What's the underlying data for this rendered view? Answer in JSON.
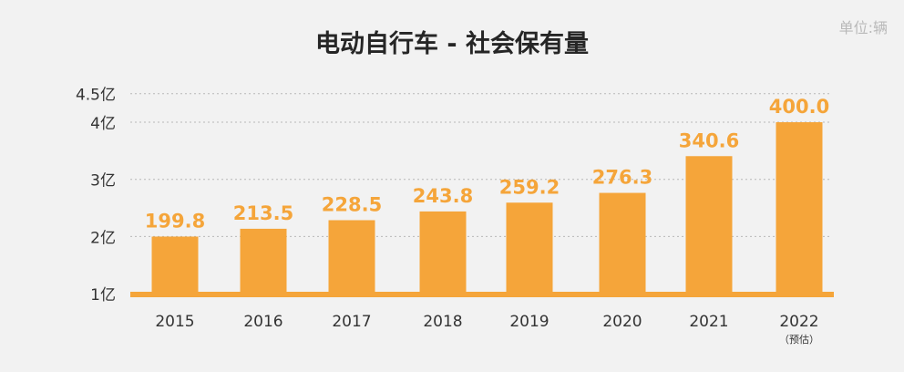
{
  "chart_data": {
    "type": "bar",
    "title": "电动自行车 - 社会保有量",
    "unit_label": "单位:辆",
    "categories": [
      "2015",
      "2016",
      "2017",
      "2018",
      "2019",
      "2020",
      "2021",
      "2022"
    ],
    "category_notes": [
      "",
      "",
      "",
      "",
      "",
      "",
      "",
      "（预估）"
    ],
    "values": [
      199.8,
      213.5,
      228.5,
      243.8,
      259.2,
      276.3,
      340.6,
      400.0
    ],
    "value_labels": [
      "199.8",
      "213.5",
      "228.5",
      "243.8",
      "259.2",
      "276.3",
      "340.6",
      "400.0"
    ],
    "y_unit_scale": 100,
    "y_ticks": [
      {
        "value": 100,
        "label": "1亿"
      },
      {
        "value": 200,
        "label": "2亿"
      },
      {
        "value": 300,
        "label": "3亿"
      },
      {
        "value": 400,
        "label": "4亿"
      },
      {
        "value": 450,
        "label": "4.5亿"
      }
    ],
    "ylim": [
      100,
      450
    ],
    "grid": true,
    "xlabel": "",
    "ylabel": "",
    "colors": {
      "bar": "#f5a53a",
      "value_label": "#f5a53a",
      "baseline": "#f5a53a",
      "grid": "#b8b8b8",
      "axis_text": "#333333"
    }
  }
}
